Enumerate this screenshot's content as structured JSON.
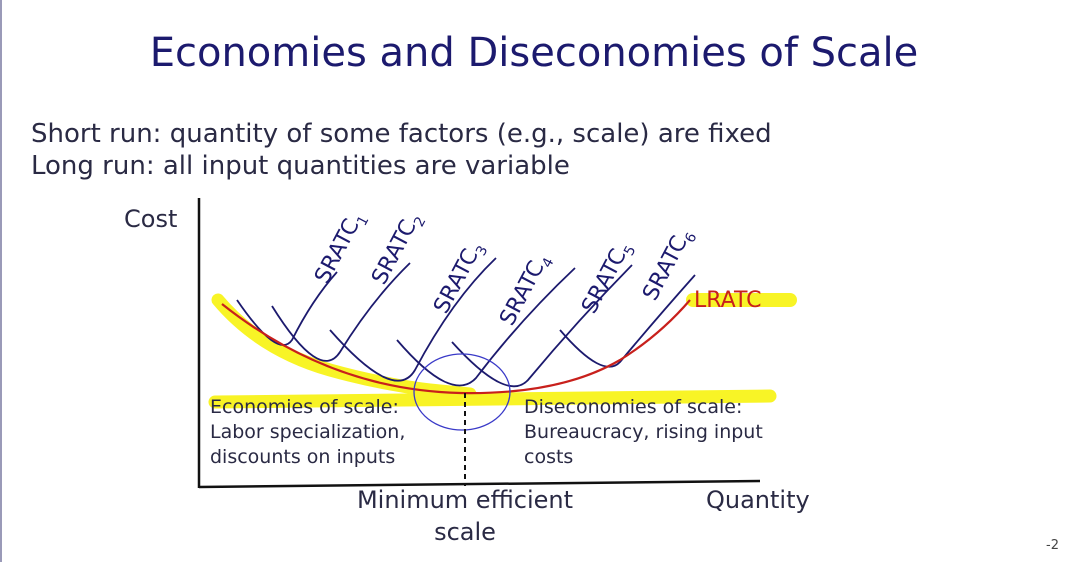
{
  "slide": {
    "title": "Economies and Diseconomies of Scale",
    "bullets": [
      "Short run: quantity of some factors (e.g., scale) are fixed",
      "Long run: all input quantities are variable"
    ],
    "page_number": "-2"
  },
  "diagram": {
    "y_axis_label": "Cost",
    "x_axis_label": "Quantity",
    "short_run_curves": [
      {
        "base": "SRATC",
        "sub": "1"
      },
      {
        "base": "SRATC",
        "sub": "2"
      },
      {
        "base": "SRATC",
        "sub": "3"
      },
      {
        "base": "SRATC",
        "sub": "4"
      },
      {
        "base": "SRATC",
        "sub": "5"
      },
      {
        "base": "SRATC",
        "sub": "6"
      }
    ],
    "long_run_curve_label": "LRATC",
    "minimum_efficient_scale": [
      "Minimum efficient",
      "scale"
    ],
    "economies_note": {
      "heading": "Economies of scale:",
      "lines": [
        "Labor specialization,",
        "discounts on inputs"
      ]
    },
    "diseconomies_note": {
      "heading": "Diseconomies of scale:",
      "lines": [
        "Bureaucracy, rising input",
        "costs"
      ]
    },
    "colors": {
      "short_run_curves": "#1c1a6e",
      "long_run_curve": "#c8201c",
      "highlight": "#f7f200",
      "circle_annotation": "#3a3ac8"
    }
  }
}
